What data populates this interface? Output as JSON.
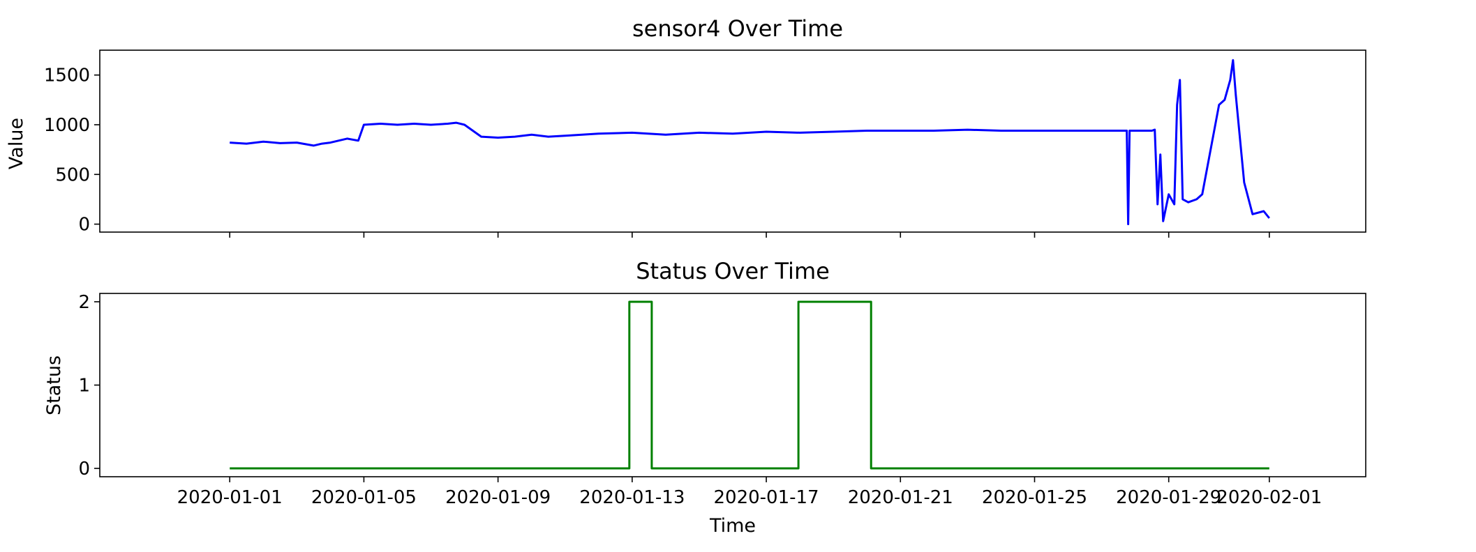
{
  "chart_data": [
    {
      "type": "line",
      "title": "sensor4 Over Time",
      "xlabel": "",
      "ylabel": "Value",
      "xlim": [
        "2019-12-28T03:00",
        "2020-02-03T21:00"
      ],
      "ylim": [
        -80,
        1750
      ],
      "x_ticks": [
        "2020-01-01",
        "2020-01-05",
        "2020-01-09",
        "2020-01-13",
        "2020-01-17",
        "2020-01-21",
        "2020-01-25",
        "2020-01-29",
        "2020-02-01"
      ],
      "x_tick_labels_shown": false,
      "y_ticks": [
        0,
        500,
        1000,
        1500
      ],
      "grid": false,
      "color": "#0000ff",
      "series": [
        {
          "x": [
            "2020-01-01T00:00",
            "2020-01-01T12:00",
            "2020-01-02T00:00",
            "2020-01-02T12:00",
            "2020-01-03T00:00",
            "2020-01-03T12:00",
            "2020-01-03T18:00",
            "2020-01-04T00:00",
            "2020-01-04T12:00",
            "2020-01-04T20:00",
            "2020-01-05T00:00",
            "2020-01-05T12:00",
            "2020-01-06T00:00",
            "2020-01-06T12:00",
            "2020-01-07T00:00",
            "2020-01-07T12:00",
            "2020-01-07T18:00",
            "2020-01-08T00:00",
            "2020-01-08T12:00",
            "2020-01-09T00:00",
            "2020-01-09T12:00",
            "2020-01-10T00:00",
            "2020-01-10T12:00",
            "2020-01-11T00:00",
            "2020-01-12T00:00",
            "2020-01-13T00:00",
            "2020-01-14T00:00",
            "2020-01-15T00:00",
            "2020-01-16T00:00",
            "2020-01-16T12:00",
            "2020-01-17T00:00",
            "2020-01-18T00:00",
            "2020-01-19T00:00",
            "2020-01-20T00:00",
            "2020-01-21T00:00",
            "2020-01-22T00:00",
            "2020-01-23T00:00",
            "2020-01-24T00:00",
            "2020-01-25T00:00",
            "2020-01-26T00:00",
            "2020-01-27T00:00",
            "2020-01-27T18:00",
            "2020-01-27T19:00",
            "2020-01-27T20:00",
            "2020-01-28T12:00",
            "2020-01-28T14:00",
            "2020-01-28T16:00",
            "2020-01-28T18:00",
            "2020-01-28T20:00",
            "2020-01-29T00:00",
            "2020-01-29T04:00",
            "2020-01-29T06:00",
            "2020-01-29T08:00",
            "2020-01-29T10:00",
            "2020-01-29T14:00",
            "2020-01-29T20:00",
            "2020-01-30T00:00",
            "2020-01-30T12:00",
            "2020-01-30T16:00",
            "2020-01-30T20:00",
            "2020-01-30T22:00",
            "2020-01-31T00:00",
            "2020-01-31T06:00",
            "2020-01-31T12:00",
            "2020-01-31T20:00",
            "2020-02-01T00:00"
          ],
          "y": [
            820,
            810,
            830,
            815,
            820,
            790,
            810,
            820,
            860,
            840,
            1000,
            1010,
            1000,
            1010,
            1000,
            1010,
            1020,
            1000,
            880,
            870,
            880,
            900,
            880,
            890,
            910,
            920,
            900,
            920,
            910,
            920,
            930,
            920,
            930,
            940,
            940,
            940,
            950,
            940,
            940,
            940,
            940,
            940,
            0,
            940,
            940,
            950,
            200,
            700,
            30,
            300,
            200,
            1200,
            1450,
            250,
            220,
            250,
            300,
            1200,
            1250,
            1450,
            1650,
            1300,
            420,
            100,
            130,
            60
          ]
        }
      ]
    },
    {
      "type": "line",
      "title": "Status Over Time",
      "xlabel": "Time",
      "ylabel": "Status",
      "xlim": [
        "2019-12-28T03:00",
        "2020-02-03T21:00"
      ],
      "ylim": [
        -0.1,
        2.1
      ],
      "x_ticks": [
        "2020-01-01",
        "2020-01-05",
        "2020-01-09",
        "2020-01-13",
        "2020-01-17",
        "2020-01-21",
        "2020-01-25",
        "2020-01-29",
        "2020-02-01"
      ],
      "y_ticks": [
        0,
        1,
        2
      ],
      "grid": false,
      "color": "#008000",
      "series": [
        {
          "step": true,
          "x": [
            "2020-01-01T00:00",
            "2020-01-12T22:00",
            "2020-01-13T14:00",
            "2020-01-17T23:00",
            "2020-01-20T03:00",
            "2020-02-01T00:00"
          ],
          "y": [
            0,
            2,
            0,
            2,
            0,
            0
          ]
        }
      ]
    }
  ]
}
